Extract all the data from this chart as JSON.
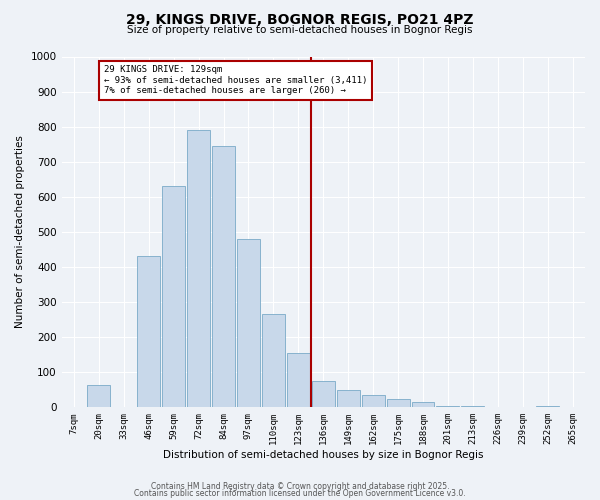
{
  "title_line1": "29, KINGS DRIVE, BOGNOR REGIS, PO21 4PZ",
  "title_line2": "Size of property relative to semi-detached houses in Bognor Regis",
  "xlabel": "Distribution of semi-detached houses by size in Bognor Regis",
  "ylabel": "Number of semi-detached properties",
  "bar_labels": [
    "7sqm",
    "20sqm",
    "33sqm",
    "46sqm",
    "59sqm",
    "72sqm",
    "84sqm",
    "97sqm",
    "110sqm",
    "123sqm",
    "136sqm",
    "149sqm",
    "162sqm",
    "175sqm",
    "188sqm",
    "201sqm",
    "213sqm",
    "226sqm",
    "239sqm",
    "252sqm",
    "265sqm"
  ],
  "bar_values": [
    0,
    65,
    0,
    430,
    630,
    790,
    745,
    480,
    265,
    155,
    75,
    50,
    35,
    25,
    15,
    5,
    5,
    0,
    0,
    5,
    0
  ],
  "bar_color": "#c8d8ea",
  "bar_edgecolor": "#7aaac8",
  "vline_color": "#aa0000",
  "vline_x": 9.5,
  "annotation_line1": "29 KINGS DRIVE: 129sqm",
  "annotation_line2": "← 93% of semi-detached houses are smaller (3,411)",
  "annotation_line3": "7% of semi-detached houses are larger (260) →",
  "ylim": [
    0,
    1000
  ],
  "yticks": [
    0,
    100,
    200,
    300,
    400,
    500,
    600,
    700,
    800,
    900,
    1000
  ],
  "background_color": "#eef2f7",
  "grid_color": "#ffffff",
  "footer_line1": "Contains HM Land Registry data © Crown copyright and database right 2025.",
  "footer_line2": "Contains public sector information licensed under the Open Government Licence v3.0."
}
